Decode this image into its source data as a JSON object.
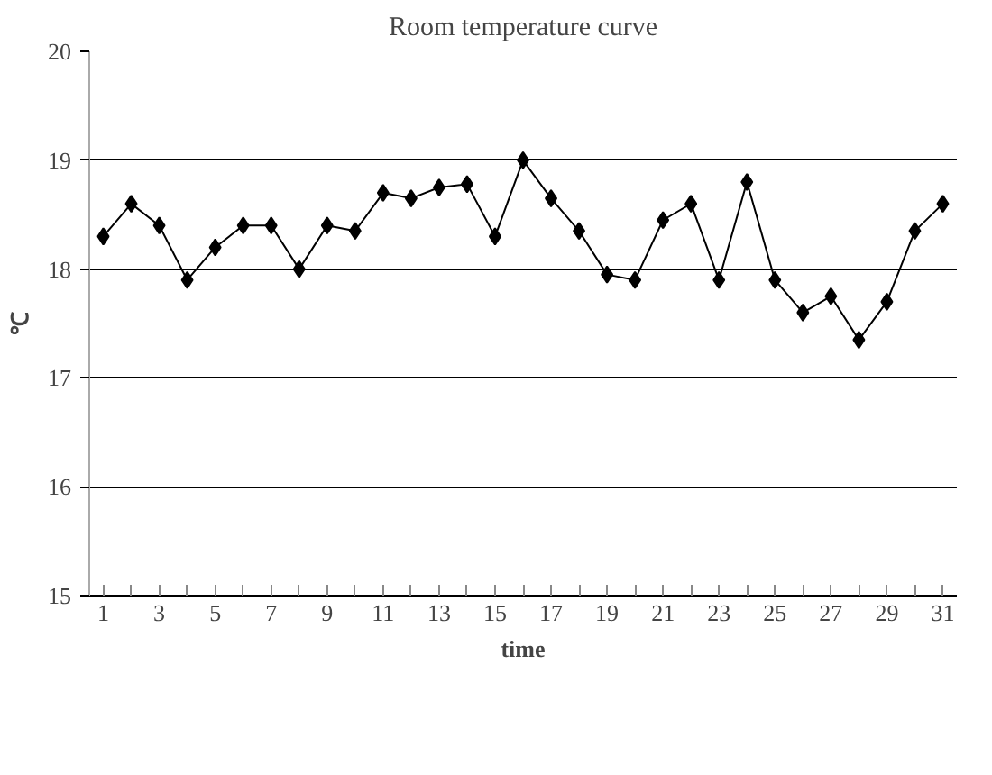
{
  "chart_data": {
    "type": "line",
    "title": "Room temperature curve",
    "xlabel": "time",
    "ylabel": "℃",
    "x": [
      1,
      2,
      3,
      4,
      5,
      6,
      7,
      8,
      9,
      10,
      11,
      12,
      13,
      14,
      15,
      16,
      17,
      18,
      19,
      20,
      21,
      22,
      23,
      24,
      25,
      26,
      27,
      28,
      29,
      30,
      31
    ],
    "series": [
      {
        "color": "#000000",
        "values": [
          18.3,
          18.6,
          18.4,
          17.9,
          18.2,
          18.4,
          18.4,
          18.0,
          18.4,
          18.35,
          18.7,
          18.65,
          18.75,
          18.78,
          18.3,
          19.0,
          18.65,
          18.35,
          17.95,
          17.9,
          18.45,
          18.6,
          17.9,
          18.8,
          17.9,
          17.6,
          17.75,
          17.35,
          17.7,
          18.35,
          18.6
        ]
      }
    ],
    "xlim": [
      0.5,
      31.5
    ],
    "xticks": [
      1,
      {
        "value": 2,
        "label": null
      },
      3,
      {
        "value": 4,
        "label": null
      },
      5,
      {
        "value": 6,
        "label": null
      },
      7,
      {
        "value": 8,
        "label": null
      },
      9,
      {
        "value": 10,
        "label": null
      },
      11,
      {
        "value": 12,
        "label": null
      },
      13,
      {
        "value": 14,
        "label": null
      },
      15,
      {
        "value": 16,
        "label": null
      },
      17,
      {
        "value": 18,
        "label": null
      },
      19,
      {
        "value": 20,
        "label": null
      },
      21,
      {
        "value": 22,
        "label": null
      },
      23,
      {
        "value": 24,
        "label": null
      },
      25,
      {
        "value": 26,
        "label": null
      },
      27,
      {
        "value": 28,
        "label": null
      },
      29,
      {
        "value": 30,
        "label": null
      },
      31
    ],
    "ylim": [
      15,
      20
    ],
    "yticks": [
      15,
      16,
      17,
      18,
      19,
      20
    ],
    "grid": "y",
    "marker": "diamond",
    "line_style": "solid"
  }
}
